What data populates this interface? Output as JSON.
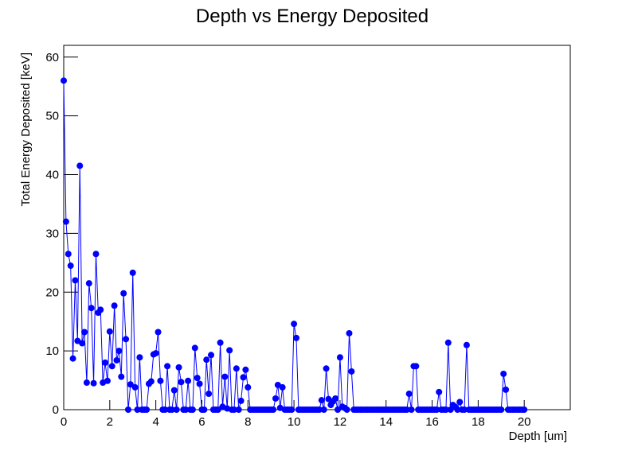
{
  "chart_data": {
    "type": "line",
    "title": "Depth vs Energy Deposited",
    "x_label": "Depth [um]",
    "y_label": "Total Energy Deposited [keV]",
    "xlim": [
      0,
      22
    ],
    "ylim": [
      0,
      62
    ],
    "xticks": [
      0,
      2,
      4,
      6,
      8,
      10,
      12,
      14,
      16,
      18,
      20
    ],
    "yticks": [
      0,
      10,
      20,
      30,
      40,
      50,
      60
    ],
    "series": [
      {
        "color": "#0000ff",
        "x": [
          0,
          0.1,
          0.2,
          0.3,
          0.4,
          0.5,
          0.6,
          0.7,
          0.8,
          0.9,
          1,
          1.1,
          1.2,
          1.3,
          1.4,
          1.5,
          1.6,
          1.7,
          1.8,
          1.9,
          2,
          2.1,
          2.2,
          2.3,
          2.4,
          2.5,
          2.6,
          2.7,
          2.8,
          2.9,
          3,
          3.1,
          3.2,
          3.3,
          3.4,
          3.5,
          3.6,
          3.7,
          3.8,
          3.9,
          4,
          4.1,
          4.2,
          4.3,
          4.4,
          4.5,
          4.6,
          4.7,
          4.8,
          4.9,
          5,
          5.1,
          5.2,
          5.3,
          5.4,
          5.5,
          5.6,
          5.7,
          5.8,
          5.9,
          6,
          6.1,
          6.2,
          6.3,
          6.4,
          6.5,
          6.6,
          6.7,
          6.8,
          6.9,
          7,
          7.1,
          7.2,
          7.3,
          7.4,
          7.5,
          7.6,
          7.7,
          7.8,
          7.9,
          8,
          8.1,
          8.2,
          8.3,
          8.4,
          8.5,
          8.6,
          8.7,
          8.8,
          8.9,
          9,
          9.1,
          9.2,
          9.3,
          9.4,
          9.5,
          9.6,
          9.7,
          9.8,
          9.9,
          10,
          10.1,
          10.2,
          10.3,
          10.4,
          10.5,
          10.6,
          10.7,
          10.8,
          10.9,
          11,
          11.1,
          11.2,
          11.3,
          11.4,
          11.5,
          11.6,
          11.7,
          11.8,
          11.9,
          12,
          12.1,
          12.2,
          12.3,
          12.4,
          12.5,
          12.6,
          12.7,
          12.8,
          12.9,
          13,
          13.1,
          13.2,
          13.3,
          13.4,
          13.5,
          13.6,
          13.7,
          13.8,
          13.9,
          14,
          14.1,
          14.2,
          14.3,
          14.4,
          14.5,
          14.6,
          14.7,
          14.8,
          14.9,
          15,
          15.1,
          15.2,
          15.3,
          15.4,
          15.5,
          15.6,
          15.7,
          15.8,
          15.9,
          16,
          16.1,
          16.2,
          16.3,
          16.4,
          16.5,
          16.6,
          16.7,
          16.8,
          16.9,
          17,
          17.1,
          17.2,
          17.3,
          17.4,
          17.5,
          17.6,
          17.7,
          17.8,
          17.9,
          18,
          18.1,
          18.2,
          18.3,
          18.4,
          18.5,
          18.6,
          18.7,
          18.8,
          18.9,
          19,
          19.1,
          19.2,
          19.3,
          19.4,
          19.5,
          19.6,
          19.7,
          19.8,
          19.9,
          20
        ],
        "values": [
          56,
          32,
          26.5,
          24.5,
          8.7,
          22,
          11.7,
          41.5,
          11.3,
          13.2,
          4.6,
          21.5,
          17.3,
          4.5,
          26.5,
          16.5,
          17,
          4.6,
          8,
          4.9,
          13.3,
          7.4,
          17.7,
          8.4,
          10,
          5.6,
          19.8,
          12,
          0,
          4.3,
          23.3,
          3.8,
          0,
          8.9,
          0,
          0,
          0,
          4.4,
          4.8,
          9.4,
          9.6,
          13.2,
          4.9,
          0,
          0,
          7.4,
          0,
          0,
          3.3,
          0,
          7.2,
          4.7,
          0,
          0,
          4.9,
          0,
          0,
          10.5,
          5.4,
          4.4,
          0,
          0,
          8.5,
          2.7,
          9.3,
          0,
          0,
          0,
          11.4,
          0.5,
          5.6,
          0.2,
          10.1,
          0,
          0,
          7,
          0,
          1.5,
          5.5,
          6.8,
          3.8,
          0,
          0,
          0,
          0,
          0,
          0,
          0,
          0,
          0,
          0,
          0,
          1.9,
          4.2,
          0.3,
          3.8,
          0,
          0,
          0,
          0,
          14.6,
          12.2,
          0,
          0,
          0,
          0,
          0,
          0,
          0,
          0,
          0,
          0,
          1.6,
          0,
          7,
          1.8,
          0.8,
          1.4,
          1.9,
          0,
          8.9,
          0.5,
          0.3,
          0,
          13,
          6.5,
          0,
          0,
          0,
          0,
          0,
          0,
          0,
          0,
          0,
          0,
          0,
          0,
          0,
          0,
          0,
          0,
          0,
          0,
          0,
          0,
          0,
          0,
          0,
          0,
          2.7,
          0,
          7.4,
          7.4,
          0,
          0,
          0,
          0,
          0,
          0,
          0,
          0,
          0,
          3,
          0,
          0,
          0,
          11.4,
          0,
          0.8,
          0.5,
          0,
          1.3,
          0,
          0,
          11,
          0,
          0,
          0,
          0,
          0,
          0,
          0,
          0,
          0,
          0,
          0,
          0,
          0,
          0,
          0,
          6.1,
          3.4,
          0,
          0,
          0,
          0,
          0,
          0,
          0,
          0
        ]
      }
    ]
  }
}
